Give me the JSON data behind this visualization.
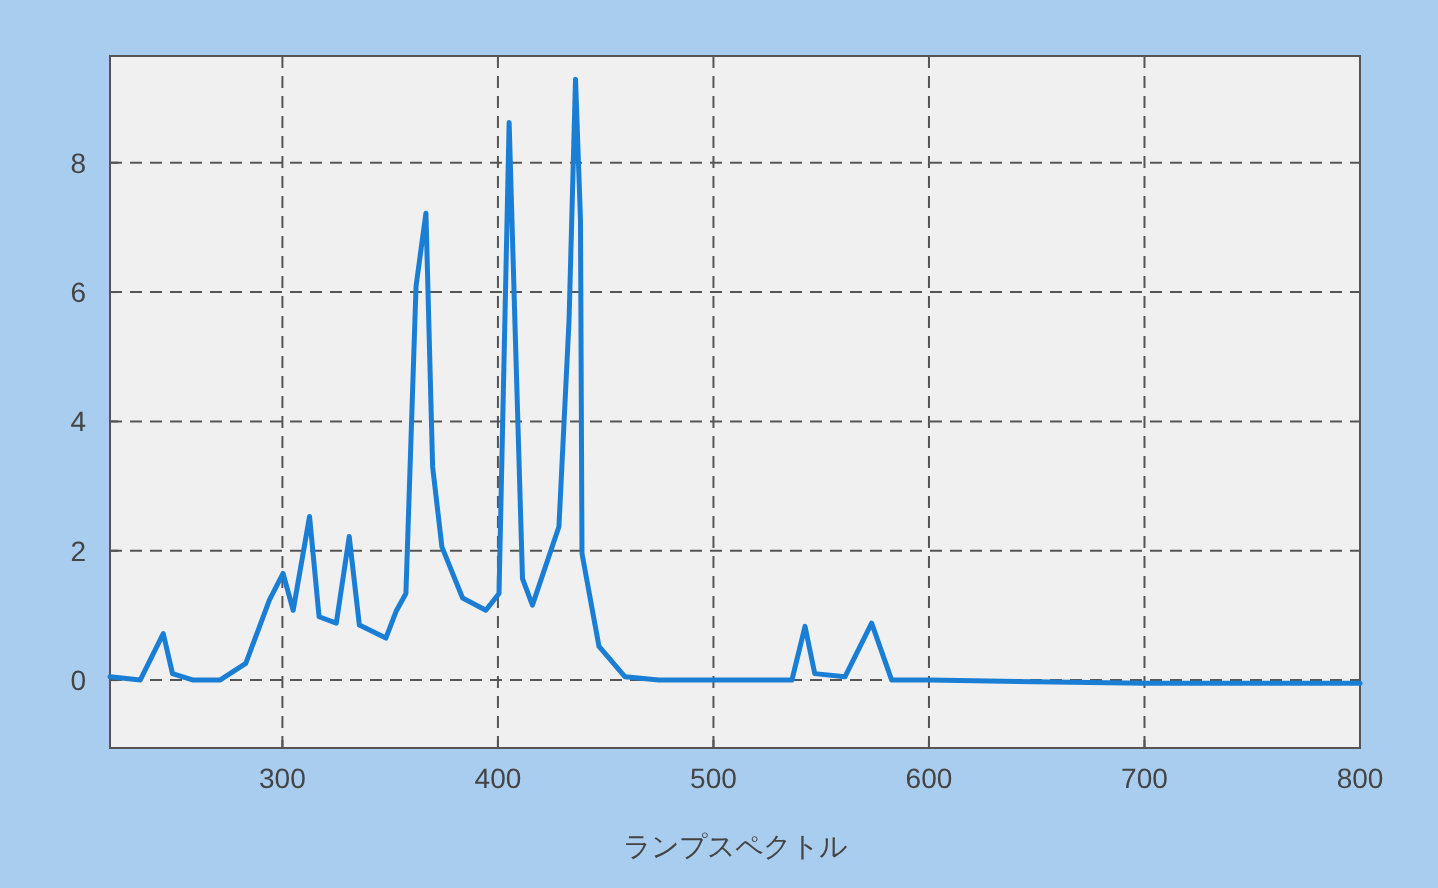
{
  "chart_data": {
    "type": "line",
    "xlabel": "ランプスペクトル",
    "xlim": [
      220,
      800
    ],
    "ylim": [
      -1.05,
      9.65
    ],
    "xticks": [
      300,
      400,
      500,
      600,
      700,
      800
    ],
    "yticks": [
      0,
      2,
      4,
      6,
      8
    ],
    "grid": true,
    "marker": "none",
    "line_style": "solid",
    "series": [
      {
        "color": "#1a7fd4",
        "x": [
          220,
          234,
          244.7,
          249,
          258.6,
          271,
          283,
          294,
          300.3,
          305,
          312.6,
          317,
          325,
          331,
          335.7,
          348,
          352.7,
          357.3,
          362,
          366.6,
          369.7,
          374,
          383.6,
          394.4,
          400.5,
          405.2,
          408.3,
          411.4,
          416,
          428.3,
          433,
          436,
          438.3,
          439,
          446.9,
          459,
          474.6,
          536.4,
          542.5,
          547,
          561,
          573.4,
          582.7,
          600,
          700,
          800
        ],
        "values": [
          0.05,
          0,
          0.72,
          0.1,
          0,
          0,
          0.26,
          1.24,
          1.65,
          1.08,
          2.53,
          0.98,
          0.88,
          2.22,
          0.85,
          0.65,
          1.06,
          1.34,
          6.09,
          7.22,
          3.3,
          2.06,
          1.27,
          1.08,
          1.34,
          8.62,
          5.06,
          1.57,
          1.16,
          2.37,
          5.57,
          9.29,
          7.12,
          1.96,
          0.52,
          0.05,
          0,
          0,
          0.83,
          0.1,
          0.05,
          0.88,
          0,
          0,
          -0.05,
          -0.05
        ]
      }
    ]
  }
}
